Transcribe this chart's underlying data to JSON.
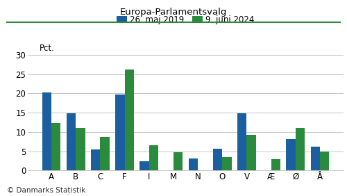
{
  "title": "Europa-Parlamentsvalg",
  "categories": [
    "A",
    "B",
    "C",
    "F",
    "I",
    "M",
    "N",
    "O",
    "V",
    "Æ",
    "Ø",
    "Å"
  ],
  "values_2019": [
    20.3,
    14.9,
    5.4,
    19.8,
    2.4,
    0,
    3.1,
    5.7,
    14.9,
    0,
    8.1,
    6.2
  ],
  "values_2024": [
    12.4,
    11.1,
    8.7,
    26.2,
    6.5,
    4.7,
    0,
    3.4,
    9.2,
    2.9,
    11.0,
    5.0
  ],
  "color_2019": "#1b5fa0",
  "color_2024": "#2a8a3e",
  "legend_2019": "26. maj 2019",
  "legend_2024": "9. juni 2024",
  "ylabel": "Pct.",
  "ylim": [
    0,
    30
  ],
  "yticks": [
    0,
    5,
    10,
    15,
    20,
    25,
    30
  ],
  "footnote": "© Danmarks Statistik",
  "bar_width": 0.38,
  "title_color": "#000000",
  "background_color": "#ffffff",
  "grid_color": "#bbbbbb",
  "green_line_color": "#2a8a3e",
  "title_fontsize": 9.5,
  "legend_fontsize": 8.5,
  "tick_fontsize": 8.5,
  "footnote_fontsize": 7.5
}
